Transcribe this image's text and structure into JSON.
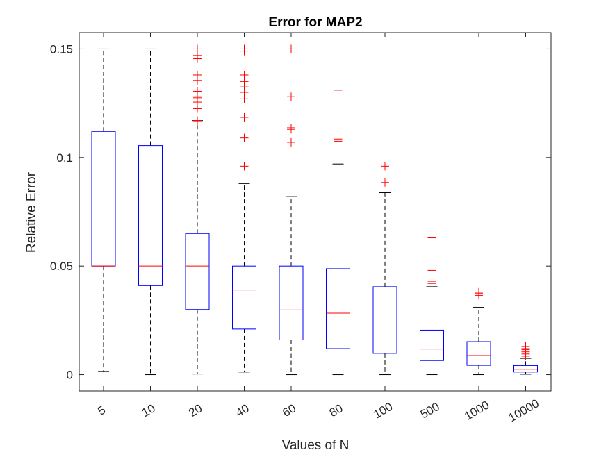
{
  "chart_data": {
    "type": "boxplot",
    "title": "Error for MAP2",
    "xlabel": "Values of N",
    "ylabel": "Relative Error",
    "categories": [
      "5",
      "10",
      "20",
      "40",
      "60",
      "80",
      "100",
      "500",
      "1000",
      "10000"
    ],
    "ylim": [
      -0.0075,
      0.1575
    ],
    "yticks": [
      0,
      0.05,
      0.1,
      0.15
    ],
    "ytick_labels": [
      "0",
      "0.05",
      "0.1",
      "0.15"
    ],
    "boxes": [
      {
        "category": "5",
        "whisker_low": 0.0015,
        "q1": 0.05,
        "median": 0.05,
        "q3": 0.112,
        "whisker_high": 0.15,
        "outliers": []
      },
      {
        "category": "10",
        "whisker_low": 0.0,
        "q1": 0.041,
        "median": 0.05,
        "q3": 0.1055,
        "whisker_high": 0.15,
        "outliers": []
      },
      {
        "category": "20",
        "whisker_low": 0.0003,
        "q1": 0.03,
        "median": 0.05,
        "q3": 0.065,
        "whisker_high": 0.117,
        "outliers": [
          0.1165,
          0.117,
          0.1225,
          0.1255,
          0.1275,
          0.128,
          0.1305,
          0.1355,
          0.138,
          0.1455,
          0.147,
          0.15
        ]
      },
      {
        "category": "40",
        "whisker_low": 0.0012,
        "q1": 0.021,
        "median": 0.039,
        "q3": 0.05,
        "whisker_high": 0.088,
        "outliers": [
          0.096,
          0.109,
          0.1185,
          0.127,
          0.13,
          0.1325,
          0.135,
          0.138,
          0.149,
          0.15
        ]
      },
      {
        "category": "60",
        "whisker_low": 0.0,
        "q1": 0.016,
        "median": 0.0298,
        "q3": 0.05,
        "whisker_high": 0.082,
        "outliers": [
          0.107,
          0.113,
          0.1137,
          0.128,
          0.15
        ]
      },
      {
        "category": "80",
        "whisker_low": 0.0,
        "q1": 0.012,
        "median": 0.0283,
        "q3": 0.0488,
        "whisker_high": 0.097,
        "outliers": [
          0.1075,
          0.1085,
          0.131
        ]
      },
      {
        "category": "100",
        "whisker_low": 0.0,
        "q1": 0.0098,
        "median": 0.0243,
        "q3": 0.0405,
        "whisker_high": 0.0838,
        "outliers": [
          0.0885,
          0.096
        ]
      },
      {
        "category": "500",
        "whisker_low": 0.0,
        "q1": 0.0065,
        "median": 0.0118,
        "q3": 0.0205,
        "whisker_high": 0.0405,
        "outliers": [
          0.042,
          0.043,
          0.048,
          0.063
        ]
      },
      {
        "category": "1000",
        "whisker_low": 0.0,
        "q1": 0.0043,
        "median": 0.0088,
        "q3": 0.0152,
        "whisker_high": 0.031,
        "outliers": [
          0.0365,
          0.0375,
          0.038
        ]
      },
      {
        "category": "10000",
        "whisker_low": 0.0002,
        "q1": 0.0012,
        "median": 0.0025,
        "q3": 0.0042,
        "whisker_high": 0.0075,
        "outliers": [
          0.0085,
          0.0095,
          0.0105,
          0.0115,
          0.012,
          0.013
        ]
      }
    ],
    "colors": {
      "box": "#0000ff",
      "median": "#ff0000",
      "whisker": "#000000",
      "outlier": "#ff0000",
      "axes": "#262626"
    },
    "grid": false,
    "legend": "none"
  }
}
